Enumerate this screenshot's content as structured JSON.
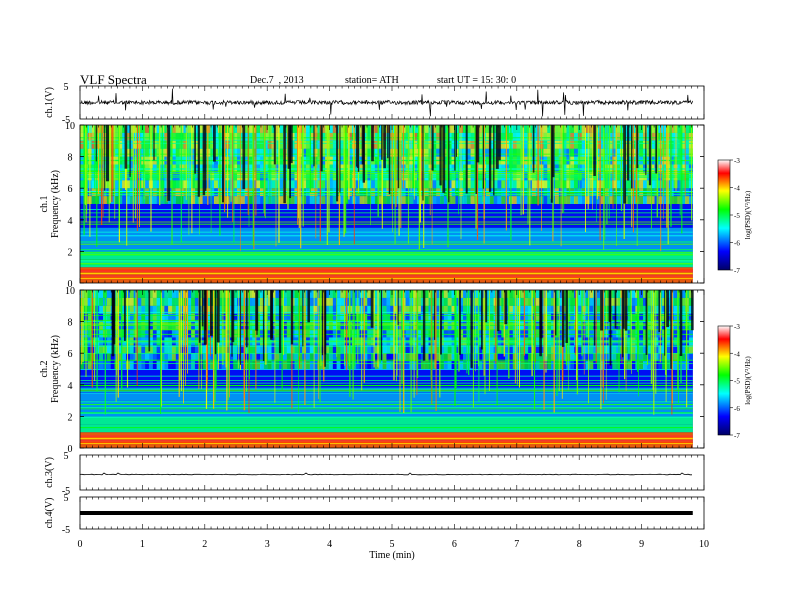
{
  "header": {
    "title": "VLF  Spectra",
    "date": "Dec.7  , 2013",
    "station": "station= ATH",
    "start": "start  UT  =   15: 30: 0"
  },
  "chart_data": {
    "type": "heatmap",
    "x": {
      "label": "Time  (min)",
      "range": [
        0,
        10
      ],
      "ticks": [
        "0",
        "1",
        "2",
        "3",
        "4",
        "5",
        "6",
        "7",
        "8",
        "9",
        "10"
      ]
    },
    "waveform_panels": [
      {
        "id": "ch1",
        "ylabel": "ch.1(V)",
        "ticks": [
          "5",
          "-5"
        ],
        "ylim": [
          -5,
          5
        ],
        "style": "noisy"
      },
      {
        "id": "ch3",
        "ylabel": "ch.3(V)",
        "ticks": [
          "5",
          "-5"
        ],
        "ylim": [
          -5,
          5
        ],
        "style": "flat"
      },
      {
        "id": "ch4",
        "ylabel": "ch.4(V)",
        "ticks": [
          "5",
          "-5"
        ],
        "ylim": [
          -5,
          5
        ],
        "style": "thick"
      }
    ],
    "spectrogram_panels": [
      {
        "id": "ch1",
        "ylabel": "ch.1\nFrequency (kHz)",
        "label_lines": [
          "ch.1",
          "Frequency  (kHz)"
        ],
        "yticks": [
          "0",
          "2",
          "4",
          "6",
          "8",
          "10"
        ],
        "ylim": [
          0,
          10
        ]
      },
      {
        "id": "ch2",
        "ylabel": "ch.2\nFrequency (kHz)",
        "label_lines": [
          "ch.2",
          "Frequency  (kHz)"
        ],
        "yticks": [
          "0",
          "2",
          "4",
          "6",
          "8",
          "10"
        ],
        "ylim": [
          0,
          10
        ]
      }
    ],
    "colorbar": {
      "label": "log(PSD)(V²/Hz)",
      "ticks": [
        "-3",
        "-4",
        "-5",
        "-6",
        "-7"
      ],
      "range": [
        -7,
        -3
      ],
      "colors": [
        "#000066",
        "#0000ff",
        "#00ffff",
        "#00ff00",
        "#ffff00",
        "#ff0000",
        "#ffffff"
      ]
    },
    "data_end_min": 9.82
  }
}
